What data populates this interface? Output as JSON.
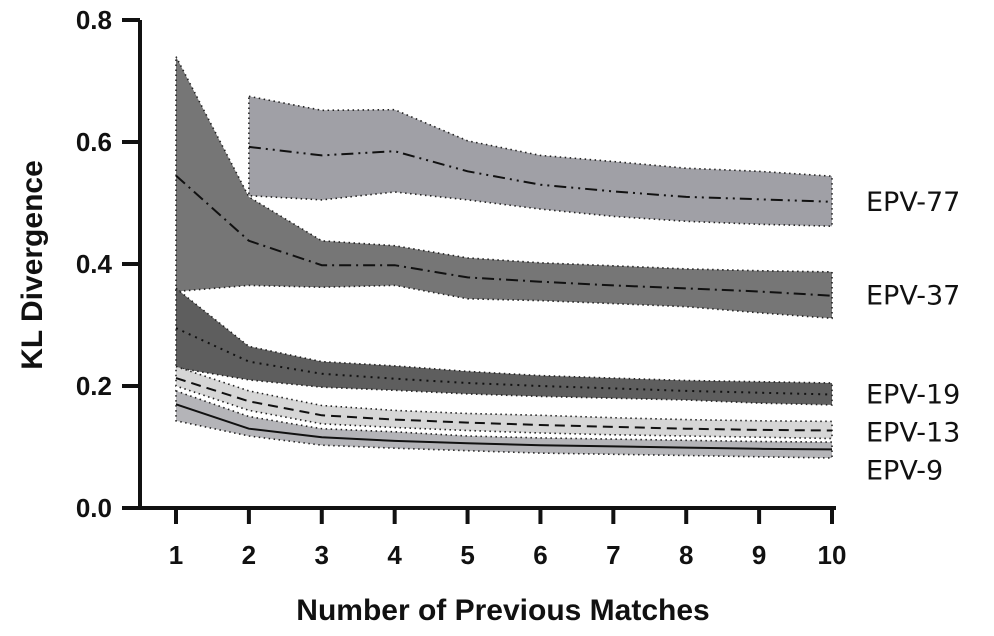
{
  "chart_data": {
    "type": "area",
    "title": "",
    "xlabel": "Number of Previous Matches",
    "ylabel": "KL Divergence",
    "xlim": [
      1,
      10
    ],
    "ylim": [
      0,
      0.8
    ],
    "x_ticks": [
      "1",
      "2",
      "3",
      "4",
      "5",
      "6",
      "7",
      "8",
      "9",
      "10"
    ],
    "y_ticks": [
      "0.0",
      "0.2",
      "0.4",
      "0.6",
      "0.8"
    ],
    "grid": false,
    "legend": "inline-right",
    "series": [
      {
        "name": "EPV-77",
        "x": [
          2,
          3,
          4,
          5,
          6,
          7,
          8,
          9,
          10
        ],
        "mean": [
          0.592,
          0.578,
          0.585,
          0.552,
          0.53,
          0.519,
          0.51,
          0.506,
          0.502
        ],
        "upper": [
          0.675,
          0.652,
          0.653,
          0.602,
          0.578,
          0.568,
          0.557,
          0.552,
          0.544
        ],
        "lower": [
          0.512,
          0.505,
          0.518,
          0.505,
          0.49,
          0.478,
          0.47,
          0.465,
          0.462
        ],
        "fill": "#a0a0a6",
        "line_style": "dashdotdot"
      },
      {
        "name": "EPV-37",
        "x": [
          1,
          2,
          3,
          4,
          5,
          6,
          7,
          8,
          9,
          10
        ],
        "mean": [
          0.545,
          0.438,
          0.398,
          0.398,
          0.378,
          0.371,
          0.365,
          0.36,
          0.355,
          0.348
        ],
        "upper": [
          0.74,
          0.51,
          0.438,
          0.43,
          0.41,
          0.402,
          0.397,
          0.392,
          0.389,
          0.387
        ],
        "lower": [
          0.355,
          0.365,
          0.362,
          0.365,
          0.343,
          0.34,
          0.335,
          0.33,
          0.32,
          0.311
        ],
        "fill": "#767676",
        "line_style": "dashdot"
      },
      {
        "name": "EPV-19",
        "x": [
          1,
          2,
          3,
          4,
          5,
          6,
          7,
          8,
          9,
          10
        ],
        "mean": [
          0.295,
          0.24,
          0.22,
          0.212,
          0.205,
          0.2,
          0.196,
          0.192,
          0.189,
          0.186
        ],
        "upper": [
          0.36,
          0.265,
          0.24,
          0.233,
          0.224,
          0.217,
          0.213,
          0.209,
          0.207,
          0.205
        ],
        "lower": [
          0.23,
          0.21,
          0.198,
          0.193,
          0.187,
          0.183,
          0.18,
          0.177,
          0.172,
          0.169
        ],
        "fill": "#5e5e5e",
        "line_style": "dotted"
      },
      {
        "name": "EPV-13",
        "x": [
          1,
          2,
          3,
          4,
          5,
          6,
          7,
          8,
          9,
          10
        ],
        "mean": [
          0.213,
          0.175,
          0.152,
          0.145,
          0.14,
          0.136,
          0.133,
          0.13,
          0.128,
          0.127
        ],
        "upper": [
          0.232,
          0.192,
          0.168,
          0.16,
          0.155,
          0.152,
          0.148,
          0.145,
          0.143,
          0.142
        ],
        "lower": [
          0.2,
          0.16,
          0.138,
          0.132,
          0.127,
          0.123,
          0.12,
          0.118,
          0.116,
          0.114
        ],
        "fill": "#d6d6d6",
        "line_style": "dashed"
      },
      {
        "name": "EPV-9",
        "x": [
          1,
          2,
          3,
          4,
          5,
          6,
          7,
          8,
          9,
          10
        ],
        "mean": [
          0.17,
          0.13,
          0.116,
          0.11,
          0.106,
          0.103,
          0.101,
          0.099,
          0.097,
          0.096
        ],
        "upper": [
          0.192,
          0.15,
          0.13,
          0.125,
          0.118,
          0.115,
          0.113,
          0.111,
          0.109,
          0.108
        ],
        "lower": [
          0.143,
          0.118,
          0.103,
          0.098,
          0.094,
          0.09,
          0.088,
          0.086,
          0.084,
          0.082
        ],
        "fill": "#b4b4b8",
        "line_style": "solid"
      }
    ]
  }
}
